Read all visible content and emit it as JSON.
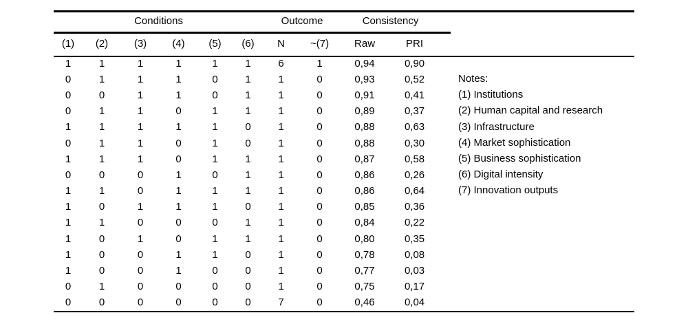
{
  "page": {
    "background_color": "#ffffff",
    "text_color": "#000000"
  },
  "table": {
    "group_headers": [
      {
        "label": "Conditions",
        "colspan": 6
      },
      {
        "label": "Outcome",
        "colspan": 2
      },
      {
        "label": "Consistency",
        "colspan": 2
      }
    ],
    "columns": [
      "(1)",
      "(2)",
      "(3)",
      "(4)",
      "(5)",
      "(6)",
      "N",
      "~(7)",
      "Raw",
      "PRI"
    ],
    "rows": [
      [
        "1",
        "1",
        "1",
        "1",
        "1",
        "1",
        "6",
        "1",
        "0,94",
        "0,90"
      ],
      [
        "0",
        "1",
        "1",
        "1",
        "0",
        "1",
        "1",
        "0",
        "0,93",
        "0,52"
      ],
      [
        "0",
        "0",
        "1",
        "1",
        "0",
        "1",
        "1",
        "0",
        "0,91",
        "0,41"
      ],
      [
        "0",
        "1",
        "1",
        "0",
        "1",
        "1",
        "1",
        "0",
        "0,89",
        "0,37"
      ],
      [
        "1",
        "1",
        "1",
        "1",
        "1",
        "0",
        "1",
        "0",
        "0,88",
        "0,63"
      ],
      [
        "0",
        "1",
        "1",
        "0",
        "1",
        "0",
        "1",
        "0",
        "0,88",
        "0,30"
      ],
      [
        "1",
        "1",
        "1",
        "0",
        "1",
        "1",
        "1",
        "0",
        "0,87",
        "0,58"
      ],
      [
        "0",
        "0",
        "0",
        "1",
        "0",
        "1",
        "1",
        "0",
        "0,86",
        "0,26"
      ],
      [
        "1",
        "1",
        "0",
        "1",
        "1",
        "1",
        "1",
        "0",
        "0,86",
        "0,64"
      ],
      [
        "1",
        "0",
        "1",
        "1",
        "1",
        "0",
        "1",
        "0",
        "0,85",
        "0,36"
      ],
      [
        "1",
        "1",
        "0",
        "0",
        "0",
        "1",
        "1",
        "0",
        "0,84",
        "0,22"
      ],
      [
        "1",
        "0",
        "1",
        "0",
        "1",
        "1",
        "1",
        "0",
        "0,80",
        "0,35"
      ],
      [
        "1",
        "0",
        "0",
        "1",
        "1",
        "0",
        "1",
        "0",
        "0,78",
        "0,08"
      ],
      [
        "1",
        "0",
        "0",
        "1",
        "0",
        "0",
        "1",
        "0",
        "0,77",
        "0,03"
      ],
      [
        "0",
        "1",
        "0",
        "0",
        "0",
        "0",
        "1",
        "0",
        "0,75",
        "0,17"
      ],
      [
        "0",
        "0",
        "0",
        "0",
        "0",
        "0",
        "7",
        "0",
        "0,46",
        "0,04"
      ]
    ]
  },
  "notes": {
    "title": "Notes:",
    "items": [
      "(1) Institutions",
      "(2) Human capital and research",
      "(3) Infrastructure",
      "(4) Market sophistication",
      "(5) Business sophistication",
      "(6) Digital intensity",
      "(7) Innovation outputs"
    ]
  }
}
